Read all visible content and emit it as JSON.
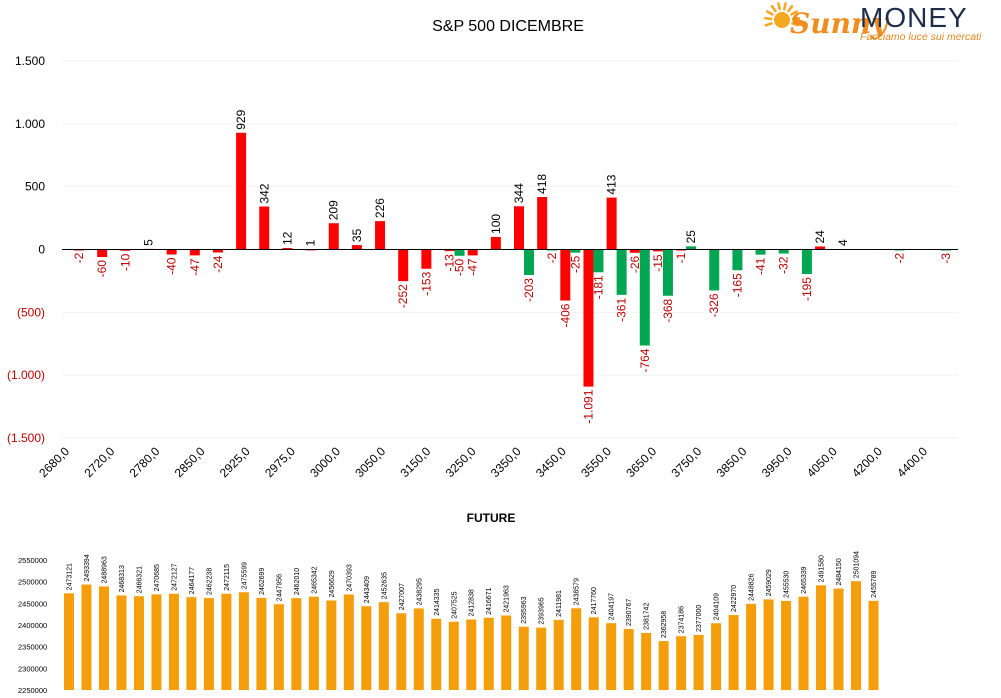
{
  "logo": {
    "brand_sunny": "Sunny",
    "brand_money": "MONEY",
    "tagline": "Facciamo luce sui mercati",
    "colors": {
      "sun": "#F5A623",
      "sunny_text": "#F28C1E",
      "money_text": "#1F2D4D",
      "tagline": "#E08A1E"
    }
  },
  "colors": {
    "positive": "#FF0000",
    "negative": "#00A651",
    "future_bar": "#F59E0B",
    "axis_text": "#000000",
    "negative_tick": "#C00000"
  },
  "chart_data": [
    {
      "type": "bar",
      "title": "S&P 500 DICEMBRE",
      "xlabel": "",
      "ylabel": "",
      "ylim": [
        -1500,
        1500
      ],
      "yticks": [
        1500,
        1000,
        500,
        0,
        -500,
        -1000,
        -1500
      ],
      "ytick_labels": [
        "1.500",
        "1.000",
        "500",
        "0",
        "(500)",
        "(1.000)",
        "(1.500)"
      ],
      "grid": true,
      "legend": "none",
      "x_tick_labels": [
        "2680,0",
        "2720,0",
        "2780,0",
        "2850,0",
        "2925,0",
        "2975,0",
        "3000,0",
        "3050,0",
        "3150,0",
        "3250,0",
        "3350,0",
        "3450,0",
        "3550,0",
        "3650,0",
        "3750,0",
        "3850,0",
        "3950,0",
        "4050,0",
        "4200,0",
        "4400,0"
      ],
      "pairs": [
        {
          "red": -2,
          "green": null
        },
        {
          "red": -60,
          "green": null
        },
        {
          "red": -10,
          "green": null
        },
        {
          "red": 5,
          "green": null
        },
        {
          "red": -40,
          "green": null
        },
        {
          "red": -47,
          "green": null
        },
        {
          "red": -24,
          "green": null
        },
        {
          "red": 929,
          "green": null
        },
        {
          "red": 342,
          "green": null
        },
        {
          "red": 12,
          "green": null
        },
        {
          "red": 1,
          "green": null
        },
        {
          "red": 209,
          "green": null
        },
        {
          "red": 35,
          "green": null
        },
        {
          "red": 226,
          "green": null
        },
        {
          "red": -252,
          "green": null
        },
        {
          "red": -153,
          "green": null
        },
        {
          "red": -13,
          "green": -50
        },
        {
          "red": -47,
          "green": null
        },
        {
          "red": 100,
          "green": null
        },
        {
          "red": 344,
          "green": -203
        },
        {
          "red": 418,
          "green": -2
        },
        {
          "red": -406,
          "green": -25
        },
        {
          "red": -1091,
          "green": -181
        },
        {
          "red": 413,
          "green": -361
        },
        {
          "red": -26,
          "green": -764
        },
        {
          "red": -15,
          "green": -368
        },
        {
          "red": -1,
          "green": 25
        },
        {
          "red": null,
          "green": -326
        },
        {
          "red": null,
          "green": -165
        },
        {
          "red": null,
          "green": -41
        },
        {
          "red": null,
          "green": -32
        },
        {
          "red": null,
          "green": -195
        },
        {
          "red": 24,
          "green": null
        },
        {
          "red": 4,
          "green": null
        },
        {
          "red": null,
          "green": null
        },
        {
          "red": null,
          "green": -2
        },
        {
          "red": null,
          "green": null
        },
        {
          "red": null,
          "green": -3
        }
      ]
    },
    {
      "type": "bar",
      "title": "FUTURE",
      "xlabel": "",
      "ylabel": "",
      "ylim": [
        2250000,
        2550000
      ],
      "yticks": [
        2550000,
        2500000,
        2450000,
        2400000,
        2350000,
        2300000,
        2250000
      ],
      "ytick_labels": [
        "2550000",
        "2500000",
        "2450000",
        "2400000",
        "2350000",
        "2300000",
        "2250000"
      ],
      "legend": "none",
      "values": [
        2473121,
        2493394,
        2488963,
        2468313,
        2466321,
        2470685,
        2472127,
        2464177,
        2462238,
        2472115,
        2475599,
        2462699,
        2447956,
        2462010,
        2465342,
        2456629,
        2470393,
        2443409,
        2452635,
        2427007,
        2438295,
        2414335,
        2407525,
        2412838,
        2416671,
        2421963,
        2395963,
        2393965,
        2411981,
        2438579,
        2417760,
        2404197,
        2390767,
        2381742,
        2362958,
        2374186,
        2377000,
        2404109,
        2422970,
        2448826,
        2459029,
        2455530,
        2465339,
        2491580,
        2484150,
        2501094,
        2455789
      ]
    }
  ]
}
